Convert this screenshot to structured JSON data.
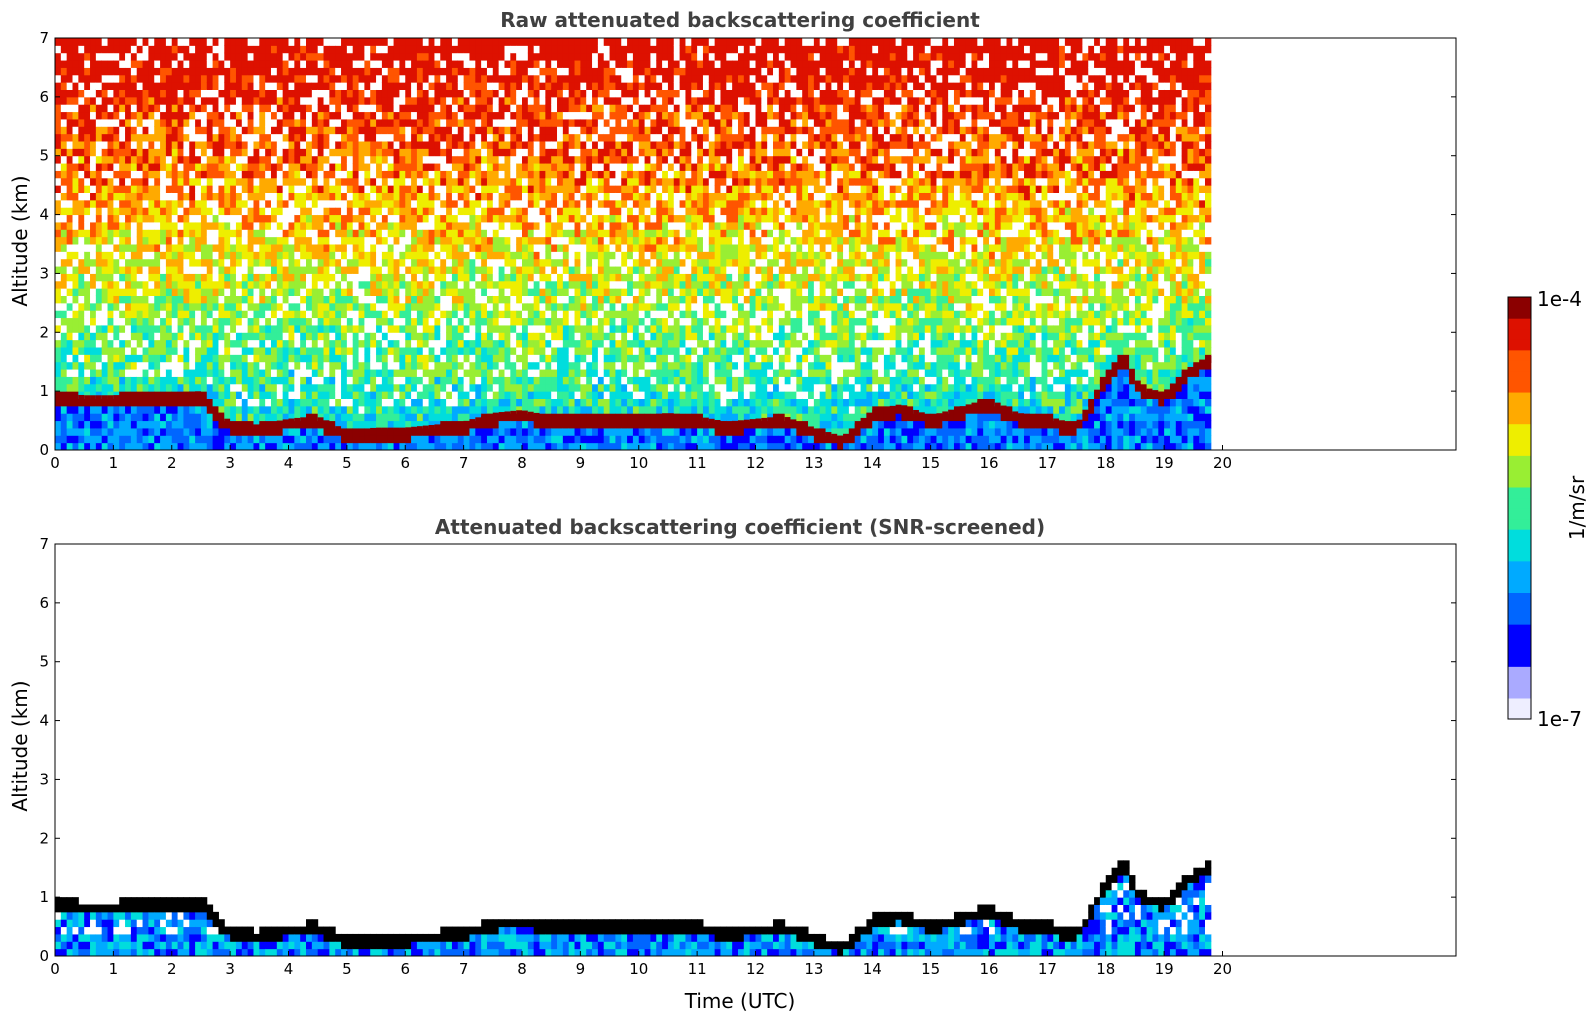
{
  "colors": {
    "clear_air": "#ffffff",
    "layer": "#8b0000",
    "screened_layer": "#000000",
    "axis": "#000000",
    "title": "#404040"
  },
  "colormap": [
    "#eeeeff",
    "#aaaaff",
    "#0000ff",
    "#0066ff",
    "#00aaff",
    "#00dddd",
    "#33ee99",
    "#99ee33",
    "#eeee00",
    "#ffaa00",
    "#ff5500",
    "#dd1100",
    "#8b0000"
  ],
  "chart_data": [
    {
      "type": "heatmap",
      "title": "Raw attenuated backscattering coefficient",
      "xlabel": "",
      "ylabel": "Altitude (km)",
      "xlim": [
        0,
        24
      ],
      "ylim": [
        0,
        7
      ],
      "x_ticks": [
        "0",
        "1",
        "2",
        "3",
        "4",
        "5",
        "6",
        "7",
        "8",
        "9",
        "10",
        "11",
        "12",
        "13",
        "14",
        "15",
        "16",
        "17",
        "18",
        "19",
        "20"
      ],
      "y_ticks": [
        "0",
        "1",
        "2",
        "3",
        "4",
        "5",
        "6",
        "7"
      ],
      "data_end_time": 19.8,
      "grid": false,
      "screened": false
    },
    {
      "type": "heatmap",
      "title": "Attenuated backscattering coefficient (SNR-screened)",
      "xlabel": "Time (UTC)",
      "ylabel": "Altitude (km)",
      "xlim": [
        0,
        24
      ],
      "ylim": [
        0,
        7
      ],
      "x_ticks": [
        "0",
        "1",
        "2",
        "3",
        "4",
        "5",
        "6",
        "7",
        "8",
        "9",
        "10",
        "11",
        "12",
        "13",
        "14",
        "15",
        "16",
        "17",
        "18",
        "19",
        "20"
      ],
      "y_ticks": [
        "0",
        "1",
        "2",
        "3",
        "4",
        "5",
        "6",
        "7"
      ],
      "data_end_time": 19.8,
      "grid": false,
      "screened": true
    }
  ],
  "layer_top_km": [
    [
      0,
      0.9
    ],
    [
      0.5,
      0.85
    ],
    [
      1,
      0.85
    ],
    [
      1.5,
      0.88
    ],
    [
      2,
      0.9
    ],
    [
      2.5,
      0.92
    ],
    [
      3,
      0.4
    ],
    [
      3.5,
      0.35
    ],
    [
      4,
      0.45
    ],
    [
      4.5,
      0.5
    ],
    [
      5,
      0.25
    ],
    [
      5.5,
      0.3
    ],
    [
      6,
      0.3
    ],
    [
      6.5,
      0.35
    ],
    [
      7,
      0.4
    ],
    [
      7.5,
      0.55
    ],
    [
      8,
      0.6
    ],
    [
      8.5,
      0.5
    ],
    [
      9,
      0.5
    ],
    [
      9.5,
      0.5
    ],
    [
      10,
      0.5
    ],
    [
      10.5,
      0.55
    ],
    [
      11,
      0.5
    ],
    [
      11.5,
      0.4
    ],
    [
      12,
      0.45
    ],
    [
      12.5,
      0.5
    ],
    [
      13,
      0.3
    ],
    [
      13.5,
      0.15
    ],
    [
      14,
      0.6
    ],
    [
      14.5,
      0.7
    ],
    [
      15,
      0.5
    ],
    [
      15.5,
      0.65
    ],
    [
      16,
      0.8
    ],
    [
      16.5,
      0.55
    ],
    [
      17,
      0.5
    ],
    [
      17.5,
      0.35
    ],
    [
      18,
      1.2
    ],
    [
      18.3,
      1.6
    ],
    [
      18.6,
      1.0
    ],
    [
      19,
      0.9
    ],
    [
      19.4,
      1.3
    ],
    [
      19.8,
      1.55
    ]
  ],
  "colorbar": {
    "max_label": "1e-4",
    "min_label": "1e-7",
    "unit_label": "1/m/sr"
  }
}
